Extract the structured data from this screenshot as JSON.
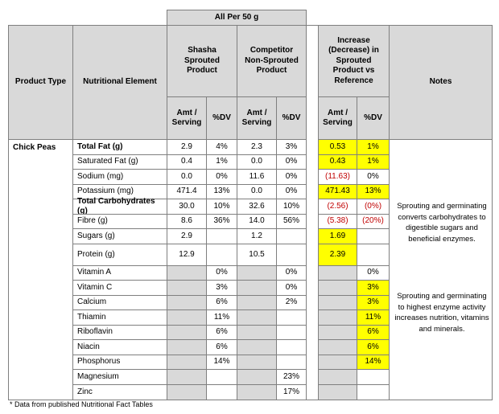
{
  "table": {
    "group_header": "All Per 50 g",
    "headers": {
      "product_type": "Product Type",
      "element": "Nutritional Element",
      "shasha": "Shasha Sprouted Product",
      "competitor": "Competitor Non-Sprouted Product",
      "increase": "Increase (Decrease) in Sprouted Product vs Reference",
      "notes": "Notes"
    },
    "subheaders": [
      "Amt / Serving",
      "%DV",
      "Amt / Serving",
      "%DV",
      "Amt / Serving",
      "%DV"
    ],
    "product": "Chick Peas",
    "rows": [
      [
        "Total Fat (g)",
        "2.9",
        "4%",
        "2.3",
        "3%",
        "0.53",
        "1%"
      ],
      [
        "Saturated Fat (g)",
        "0.4",
        "1%",
        "0.0",
        "0%",
        "0.43",
        "1%"
      ],
      [
        "Sodium (mg)",
        "0.0",
        "0%",
        "11.6",
        "0%",
        "(11.63)",
        "0%"
      ],
      [
        "Potassium (mg)",
        "471.4",
        "13%",
        "0.0",
        "0%",
        "471.43",
        "13%"
      ],
      [
        "Total Carbohydrates (g)",
        "30.0",
        "10%",
        "32.6",
        "10%",
        "(2.56)",
        "(0%)"
      ],
      [
        "Fibre (g)",
        "8.6",
        "36%",
        "14.0",
        "56%",
        "(5.38)",
        "(20%)"
      ],
      [
        "Sugars (g)",
        "2.9",
        null,
        "1.2",
        null,
        "1.69",
        null
      ],
      [
        "Protein (g)",
        "12.9",
        null,
        "10.5",
        null,
        "2.39",
        null
      ],
      [
        "Vitamin A",
        null,
        "0%",
        null,
        "0%",
        null,
        "0%"
      ],
      [
        "Vitamin C",
        null,
        "3%",
        null,
        "0%",
        null,
        "3%"
      ],
      [
        "Calcium",
        null,
        "6%",
        null,
        "2%",
        null,
        "3%"
      ],
      [
        "Thiamin",
        null,
        "11%",
        null,
        null,
        null,
        "11%"
      ],
      [
        "Riboflavin",
        null,
        "6%",
        null,
        null,
        null,
        "6%"
      ],
      [
        "Niacin",
        null,
        "6%",
        null,
        null,
        null,
        "6%"
      ],
      [
        "Phosphorus",
        null,
        "14%",
        null,
        null,
        null,
        "14%"
      ],
      [
        "Magnesium",
        null,
        null,
        null,
        "23%",
        null,
        null
      ],
      [
        "Zinc",
        null,
        null,
        null,
        "17%",
        null,
        null
      ]
    ],
    "notes": [
      "Sprouting and germinating converts carbohydrates to digestible sugars and beneficial enzymes.",
      "Sprouting and germinating to highest enzyme activity increases nutrition, vitamins and minerals."
    ]
  },
  "footnote": "* Data from published Nutritional Fact Tables"
}
